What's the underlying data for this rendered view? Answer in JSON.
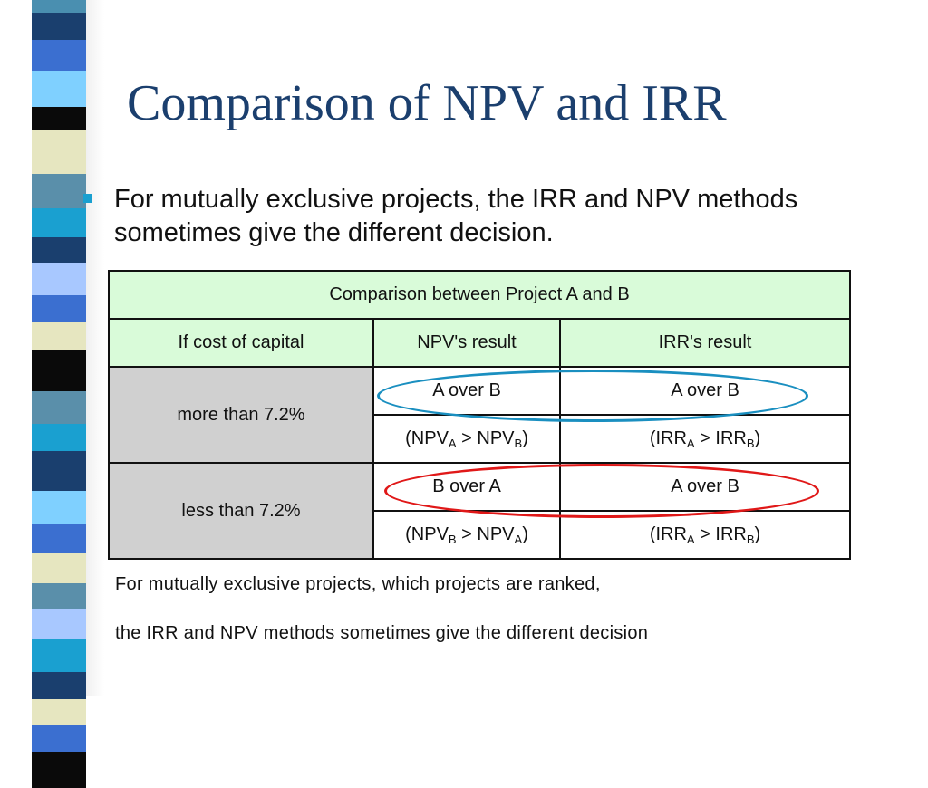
{
  "title": "Comparison of NPV and IRR",
  "bullet": "For mutually exclusive projects, the IRR and NPV methods sometimes give the different decision.",
  "table": {
    "header": "Comparison between Project A and B",
    "columns": [
      "If cost of capital",
      "NPV's result",
      "IRR's result"
    ],
    "rows": [
      {
        "condition": "more than 7.2%",
        "npv_result": "A over B",
        "irr_result": "A over B",
        "npv_detail": {
          "open": "(NPV",
          "sub1": "A",
          "mid": " > NPV",
          "sub2": "B",
          "close": ")"
        },
        "irr_detail": {
          "open": "(IRR",
          "sub1": "A",
          "mid": " > IRR",
          "sub2": "B",
          "close": ")"
        }
      },
      {
        "condition": "less than 7.2%",
        "npv_result": "B over A",
        "irr_result": "A over B",
        "npv_detail": {
          "open": "(NPV",
          "sub1": "B",
          "mid": " > NPV",
          "sub2": "A",
          "close": ")"
        },
        "irr_detail": {
          "open": "(IRR",
          "sub1": "A",
          "mid": " > IRR",
          "sub2": "B",
          "close": ")"
        }
      }
    ]
  },
  "footnote": [
    "For mutually exclusive projects, which projects are ranked,",
    "the IRR and NPV methods sometimes give the different decision"
  ],
  "colors": {
    "title": "#1b3f6e",
    "table_header_bg": "#d9fbd9",
    "condition_bg": "#d0d0d0",
    "highlight_blue": "#1a8fc0",
    "highlight_red": "#e01818",
    "bullet": "#1aa0d0"
  }
}
